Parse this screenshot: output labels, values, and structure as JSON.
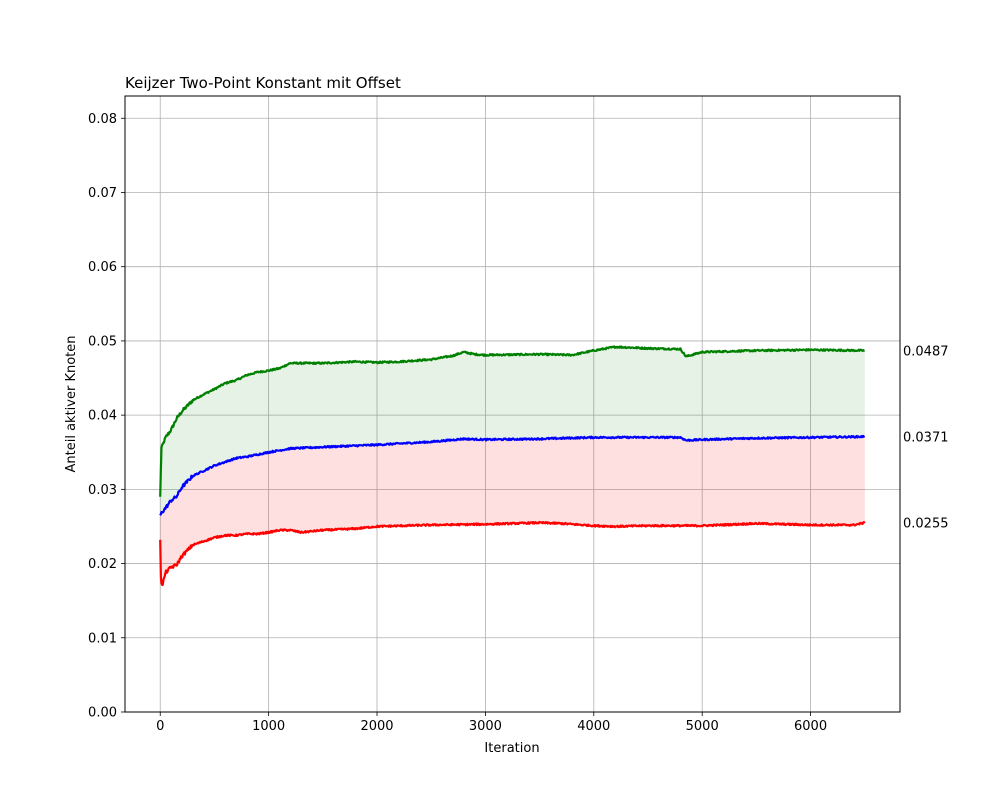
{
  "chart_data": {
    "type": "line",
    "title": "Keijzer Two-Point Konstant mit Offset",
    "xlabel": "Iteration",
    "ylabel": "Anteil aktiver Knoten",
    "xlim": [
      -325,
      6825
    ],
    "ylim": [
      0.0,
      0.083
    ],
    "xticks": [
      0,
      1000,
      2000,
      3000,
      4000,
      5000,
      6000
    ],
    "xtick_labels": [
      "0",
      "1000",
      "2000",
      "3000",
      "4000",
      "5000",
      "6000"
    ],
    "yticks": [
      0.0,
      0.01,
      0.02,
      0.03,
      0.04,
      0.05,
      0.06,
      0.07,
      0.08
    ],
    "ytick_labels": [
      "0.00",
      "0.01",
      "0.02",
      "0.03",
      "0.04",
      "0.05",
      "0.06",
      "0.07",
      "0.08"
    ],
    "grid": true,
    "series": [
      {
        "color": "#008000",
        "x": [
          0,
          10,
          50,
          100,
          150,
          200,
          300,
          400,
          500,
          600,
          700,
          800,
          900,
          1000,
          1100,
          1200,
          1300,
          1500,
          1800,
          2000,
          2200,
          2500,
          2700,
          2800,
          2900,
          3000,
          3500,
          3800,
          4000,
          4200,
          4500,
          4800,
          4850,
          5000,
          5500,
          6000,
          6500
        ],
        "y": [
          0.029,
          0.0355,
          0.037,
          0.038,
          0.0395,
          0.0405,
          0.042,
          0.0428,
          0.0435,
          0.0443,
          0.0447,
          0.0454,
          0.0458,
          0.046,
          0.0463,
          0.047,
          0.047,
          0.047,
          0.0472,
          0.0471,
          0.0472,
          0.0475,
          0.048,
          0.0485,
          0.0482,
          0.0481,
          0.0482,
          0.0481,
          0.0487,
          0.0492,
          0.049,
          0.0489,
          0.0479,
          0.0485,
          0.0487,
          0.0488,
          0.0487
        ],
        "end_label": "0.0487"
      },
      {
        "color": "#0000ff",
        "x": [
          0,
          10,
          50,
          100,
          150,
          200,
          300,
          400,
          500,
          600,
          700,
          800,
          900,
          1000,
          1200,
          1500,
          2000,
          2500,
          2800,
          3000,
          3500,
          4000,
          4500,
          4800,
          4850,
          5000,
          5500,
          6000,
          6500
        ],
        "y": [
          0.0265,
          0.0268,
          0.0275,
          0.0285,
          0.029,
          0.0303,
          0.0318,
          0.0325,
          0.0332,
          0.0337,
          0.0342,
          0.0344,
          0.0347,
          0.035,
          0.0355,
          0.0357,
          0.036,
          0.0364,
          0.0368,
          0.0367,
          0.0368,
          0.037,
          0.037,
          0.037,
          0.0366,
          0.0367,
          0.0369,
          0.037,
          0.0371
        ],
        "end_label": "0.0371"
      },
      {
        "color": "#ff0000",
        "x": [
          0,
          5,
          15,
          50,
          100,
          150,
          200,
          300,
          400,
          500,
          600,
          700,
          800,
          900,
          1000,
          1100,
          1200,
          1300,
          1500,
          1800,
          2000,
          2500,
          3000,
          3500,
          3700,
          4000,
          4200,
          4500,
          5000,
          5500,
          6000,
          6400,
          6500
        ],
        "y": [
          0.0232,
          0.0185,
          0.0168,
          0.0188,
          0.0195,
          0.0198,
          0.021,
          0.0225,
          0.023,
          0.0235,
          0.0238,
          0.0238,
          0.024,
          0.024,
          0.0242,
          0.0245,
          0.0245,
          0.0242,
          0.0245,
          0.0247,
          0.025,
          0.0252,
          0.0253,
          0.0255,
          0.0254,
          0.0251,
          0.025,
          0.0251,
          0.0251,
          0.0254,
          0.0252,
          0.0252,
          0.0255
        ],
        "end_label": "0.0255"
      }
    ],
    "fills": [
      {
        "between": [
          0,
          1
        ],
        "color": "#008000",
        "opacity": 0.1
      },
      {
        "between": [
          1,
          2
        ],
        "color": "#ff0000",
        "opacity": 0.12
      }
    ]
  }
}
